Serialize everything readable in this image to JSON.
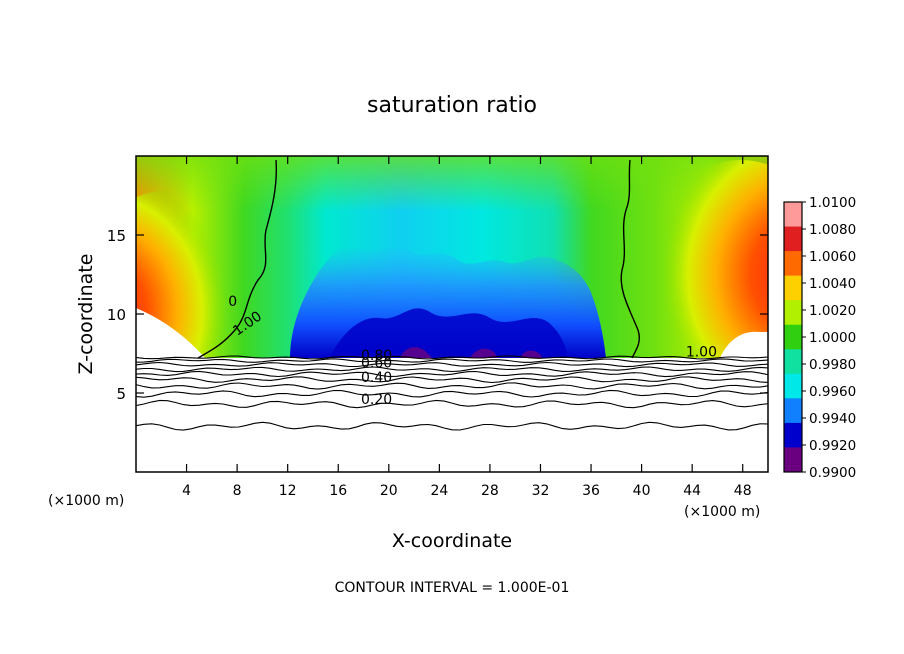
{
  "chart_data": {
    "type": "contour",
    "title": "saturation ratio",
    "xlabel": "X-coordinate",
    "ylabel": "Z-coordinate",
    "x_unit_left": "(×1000 m)",
    "x_unit_right": "(×1000 m)",
    "footer": "CONTOUR INTERVAL = 1.000E-01",
    "xlim": [
      0,
      50
    ],
    "ylim": [
      0,
      20
    ],
    "x_ticks": [
      "4",
      "8",
      "12",
      "16",
      "20",
      "24",
      "28",
      "32",
      "36",
      "40",
      "44",
      "48"
    ],
    "x_tick_values": [
      4,
      8,
      12,
      16,
      20,
      24,
      28,
      32,
      36,
      40,
      44,
      48
    ],
    "y_ticks": [
      "5",
      "10",
      "15"
    ],
    "y_tick_values": [
      5,
      10,
      15
    ],
    "colorbar": {
      "labels": [
        "1.0100",
        "1.0080",
        "1.0060",
        "1.0040",
        "1.0020",
        "1.0000",
        "0.9980",
        "0.9960",
        "0.9940",
        "0.9920",
        "0.9900"
      ],
      "values": [
        1.01,
        1.008,
        1.006,
        1.004,
        1.002,
        1.0,
        0.998,
        0.996,
        0.994,
        0.992,
        0.99
      ],
      "colors": [
        "#ff9a9a",
        "#e02020",
        "#ff6a00",
        "#ffd000",
        "#b0f000",
        "#30d010",
        "#10e0a0",
        "#00e8e8",
        "#1080ff",
        "#0000cc",
        "#6a0080"
      ]
    },
    "contour_labels": [
      {
        "text": "0",
        "x": 7.3,
        "z": 10.5
      },
      {
        "text": "1.00",
        "x": 8.0,
        "z": 8.6
      },
      {
        "text": "1.00",
        "x": 43.5,
        "z": 7.3
      },
      {
        "text": "0.80",
        "x": 17.8,
        "z": 7.1
      },
      {
        "text": "0.60",
        "x": 17.8,
        "z": 6.6
      },
      {
        "text": "0.40",
        "x": 17.8,
        "z": 5.7
      },
      {
        "text": "0.20",
        "x": 17.8,
        "z": 4.3
      }
    ],
    "isolines_z": [
      7.25,
      7.05,
      6.8,
      6.5,
      6.2,
      5.85,
      5.45,
      4.95,
      4.3,
      2.9
    ]
  }
}
